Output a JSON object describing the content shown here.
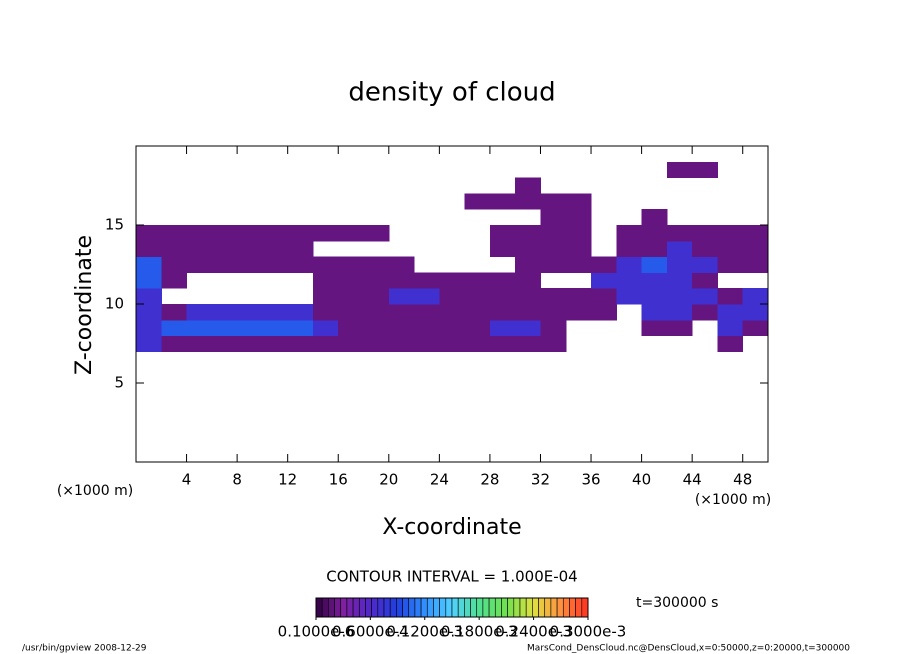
{
  "chart_data": {
    "type": "heatmap",
    "title": "density of cloud",
    "x_label": "X-coordinate",
    "y_label": "Z-coordinate",
    "x_unit": "(×1000 m)",
    "y_unit": "(×1000 m)",
    "annotation": "CONTOUR INTERVAL = 1.000E-04",
    "time_label": "t=300000 s",
    "footer_left": "/usr/bin/gpview  2008-12-29",
    "footer_right": "MarsCond_DensCloud.nc@DensCloud,x=0:50000,z=0:20000,t=300000",
    "xlim": [
      0,
      50
    ],
    "ylim": [
      0,
      20
    ],
    "xticks": [
      4,
      8,
      12,
      16,
      20,
      24,
      28,
      32,
      36,
      40,
      44,
      48
    ],
    "yticks": [
      5,
      10,
      15
    ],
    "xbins": [
      0,
      2,
      4,
      6,
      8,
      10,
      12,
      14,
      16,
      18,
      20,
      22,
      24,
      26,
      28,
      30,
      32,
      34,
      36,
      38,
      40,
      42,
      44,
      46,
      48,
      50
    ],
    "zbins": [
      7,
      8,
      9,
      10,
      11,
      12,
      13,
      14,
      15,
      16,
      17,
      18,
      19
    ],
    "colors": [
      "#300040",
      "#8020a0",
      "#5028c8",
      "#2040e0",
      "#3090ff",
      "#50d0ff",
      "#50e090",
      "#70e050",
      "#e0e040",
      "#ff9040",
      "#ff3020"
    ],
    "colorbar_ticks": [
      {
        "value": 1e-07,
        "label": "0.1000e-6"
      },
      {
        "value": 6e-05,
        "label": "0.6000e-4"
      },
      {
        "value": 0.00012,
        "label": "0.1200e-3"
      },
      {
        "value": 0.00018,
        "label": "0.1800e-3"
      },
      {
        "value": 0.00024,
        "label": "0.2400e-3"
      },
      {
        "value": 0.0003,
        "label": "0.3000e-3"
      }
    ],
    "values": [
      [
        7e-05,
        2e-05,
        2e-05,
        2e-05,
        2e-05,
        2e-05,
        2e-05,
        2e-05,
        2e-05,
        2e-05,
        2e-05,
        2e-05,
        2e-05,
        2e-05,
        2e-05,
        2e-05,
        2e-05,
        null,
        null,
        null,
        null,
        null,
        null,
        2e-05,
        null
      ],
      [
        7e-05,
        0.0001,
        0.0001,
        0.0001,
        0.0001,
        0.0001,
        0.0001,
        7e-05,
        2e-05,
        2e-05,
        2e-05,
        2e-05,
        2e-05,
        2e-05,
        7e-05,
        7e-05,
        2e-05,
        null,
        null,
        null,
        2e-05,
        2e-05,
        null,
        7e-05,
        2e-05
      ],
      [
        7e-05,
        2e-05,
        7e-05,
        7e-05,
        7e-05,
        7e-05,
        7e-05,
        2e-05,
        2e-05,
        2e-05,
        2e-05,
        2e-05,
        2e-05,
        2e-05,
        2e-05,
        2e-05,
        2e-05,
        2e-05,
        2e-05,
        null,
        7e-05,
        7e-05,
        2e-05,
        7e-05,
        7e-05
      ],
      [
        7e-05,
        null,
        null,
        null,
        null,
        null,
        null,
        2e-05,
        2e-05,
        2e-05,
        7e-05,
        7e-05,
        2e-05,
        2e-05,
        2e-05,
        2e-05,
        2e-05,
        2e-05,
        2e-05,
        7e-05,
        7e-05,
        7e-05,
        7e-05,
        2e-05,
        7e-05
      ],
      [
        0.0001,
        2e-05,
        null,
        null,
        null,
        null,
        null,
        2e-05,
        2e-05,
        2e-05,
        2e-05,
        2e-05,
        2e-05,
        2e-05,
        2e-05,
        2e-05,
        null,
        null,
        7e-05,
        7e-05,
        7e-05,
        7e-05,
        2e-05,
        null,
        null
      ],
      [
        0.0001,
        2e-05,
        2e-05,
        2e-05,
        2e-05,
        2e-05,
        2e-05,
        2e-05,
        2e-05,
        2e-05,
        2e-05,
        null,
        null,
        null,
        null,
        2e-05,
        2e-05,
        2e-05,
        2e-05,
        7e-05,
        0.0001,
        7e-05,
        7e-05,
        2e-05,
        2e-05
      ],
      [
        2e-05,
        2e-05,
        2e-05,
        2e-05,
        2e-05,
        2e-05,
        2e-05,
        null,
        null,
        null,
        null,
        null,
        null,
        null,
        2e-05,
        2e-05,
        2e-05,
        2e-05,
        null,
        2e-05,
        2e-05,
        7e-05,
        2e-05,
        2e-05,
        2e-05
      ],
      [
        2e-05,
        2e-05,
        2e-05,
        2e-05,
        2e-05,
        2e-05,
        2e-05,
        2e-05,
        2e-05,
        2e-05,
        null,
        null,
        null,
        null,
        2e-05,
        2e-05,
        2e-05,
        2e-05,
        null,
        2e-05,
        2e-05,
        2e-05,
        2e-05,
        2e-05,
        2e-05
      ],
      [
        null,
        null,
        null,
        null,
        null,
        null,
        null,
        null,
        null,
        null,
        null,
        null,
        null,
        null,
        null,
        null,
        2e-05,
        2e-05,
        null,
        null,
        2e-05,
        null,
        null,
        null,
        null
      ],
      [
        null,
        null,
        null,
        null,
        null,
        null,
        null,
        null,
        null,
        null,
        null,
        null,
        null,
        2e-05,
        2e-05,
        2e-05,
        2e-05,
        2e-05,
        null,
        null,
        null,
        null,
        null,
        null,
        null
      ],
      [
        null,
        null,
        null,
        null,
        null,
        null,
        null,
        null,
        null,
        null,
        null,
        null,
        null,
        null,
        null,
        2e-05,
        null,
        null,
        null,
        null,
        null,
        null,
        null,
        null,
        null
      ],
      [
        null,
        null,
        null,
        null,
        null,
        null,
        null,
        null,
        null,
        null,
        null,
        null,
        null,
        null,
        null,
        null,
        null,
        null,
        null,
        null,
        null,
        2e-05,
        2e-05,
        null,
        null
      ]
    ]
  }
}
